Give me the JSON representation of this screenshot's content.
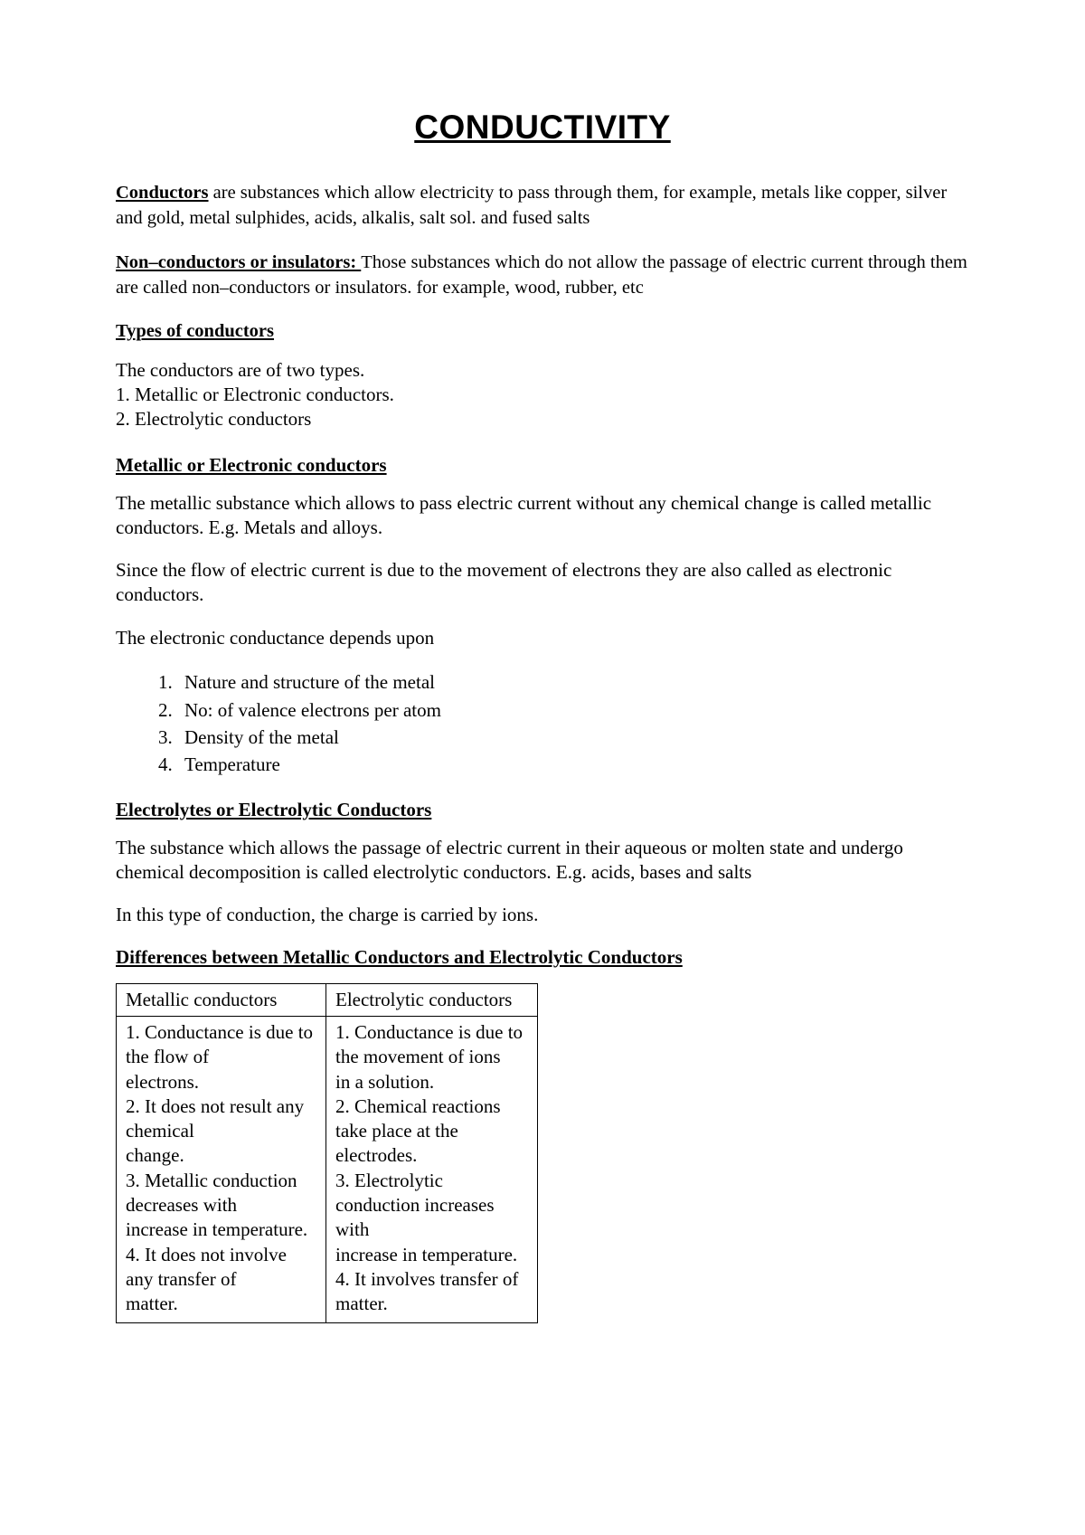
{
  "title": "CONDUCTIVITY",
  "intro1": {
    "lead": "Conductors",
    "rest": " are substances which allow electricity to pass through them, for example, metals like copper, silver and gold, metal sulphides, acids, alkalis, salt sol. and fused salts"
  },
  "intro2": {
    "lead": "Non–conductors or insulators: ",
    "rest": "Those substances which do not allow the passage of electric current through them are called non–conductors or insulators. for example, wood, rubber, etc"
  },
  "types_heading": "Types of conductors",
  "types_intro": "The conductors are of two types.",
  "types_list": [
    "1. Metallic or Electronic conductors.",
    "2. Electrolytic conductors"
  ],
  "metallic_heading": "Metallic or Electronic conductors",
  "metallic_p1": "The metallic substance which allows to pass electric current without any chemical change is called metallic conductors. E.g. Metals and alloys.",
  "metallic_p2": "Since the flow of electric current is due to the movement of electrons they are also called as electronic conductors.",
  "metallic_p3": "The electronic conductance depends upon",
  "depends_list": [
    "Nature and structure of the metal",
    "No: of valence electrons per atom",
    "Density of the metal",
    "Temperature"
  ],
  "electro_heading": "Electrolytes or Electrolytic Conductors",
  "electro_p1": "The substance which allows the passage of electric current in their aqueous or molten state and undergo chemical decomposition is called electrolytic conductors. E.g. acids, bases and salts",
  "electro_p2": "In this type of conduction, the charge is carried by ions.",
  "diff_heading": "Differences between Metallic Conductors and Electrolytic Conductors",
  "table": {
    "headers": [
      "Metallic conductors",
      "Electrolytic conductors"
    ],
    "col1_text": "1. Conductance is due to the flow of\nelectrons.\n2. It does not result any chemical\nchange.\n3. Metallic conduction decreases with\nincrease in temperature.\n4. It does not involve any transfer of\nmatter.",
    "col2_text": "1. Conductance is due to the movement of ions\nin a solution.\n2. Chemical reactions take place at the\nelectrodes.\n3. Electrolytic conduction increases with\nincrease in temperature.\n4. It involves transfer of matter."
  }
}
